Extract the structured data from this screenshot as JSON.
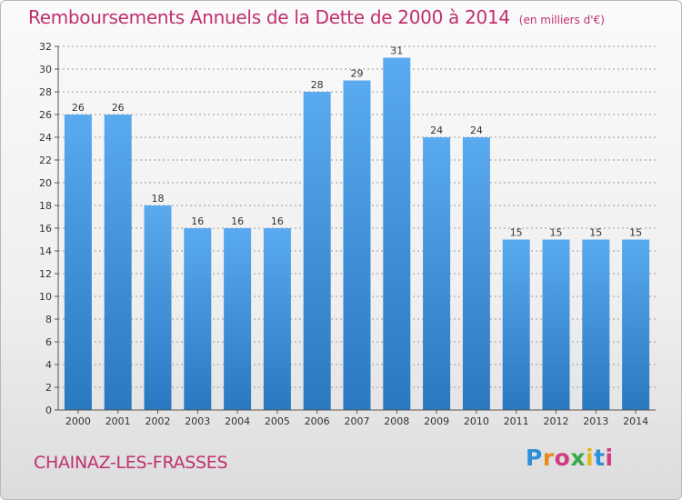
{
  "chart_data": {
    "type": "bar",
    "title": "Remboursements Annuels de la Dette de 2000 à 2014",
    "unit_note": "(en milliers d'€)",
    "categories": [
      "2000",
      "2001",
      "2002",
      "2003",
      "2004",
      "2005",
      "2006",
      "2007",
      "2008",
      "2009",
      "2010",
      "2011",
      "2012",
      "2013",
      "2014"
    ],
    "values": [
      26,
      26,
      18,
      16,
      16,
      16,
      28,
      29,
      31,
      24,
      24,
      15,
      15,
      15,
      15
    ],
    "ylim": [
      0,
      32
    ],
    "yticks": [
      0,
      2,
      4,
      6,
      8,
      10,
      12,
      14,
      16,
      18,
      20,
      22,
      24,
      26,
      28,
      30,
      32
    ],
    "xlabel": "",
    "ylabel": "",
    "grid": true,
    "bar_color": "#3d8fd6"
  },
  "footer": {
    "place_name": "CHAINAZ-LES-FRASSES",
    "logo_text": "Proxiti",
    "logo_colors": [
      "#2f8fd8",
      "#e98a1f",
      "#d23c7e",
      "#3aa84a",
      "#e0b81c",
      "#2f8fd8",
      "#d23c7e"
    ]
  },
  "colors": {
    "title": "#c0306f",
    "axis": "#555555",
    "grid": "#9a9a9a"
  }
}
